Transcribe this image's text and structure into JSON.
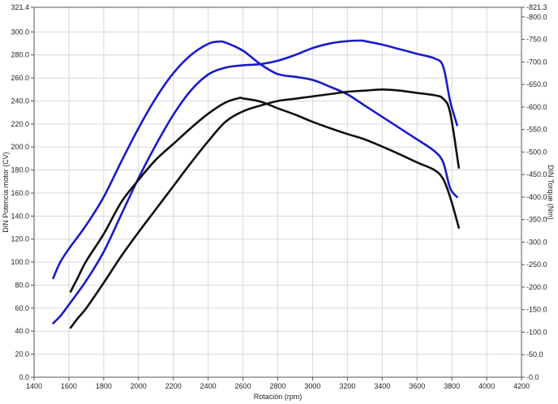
{
  "chart_data": {
    "type": "line",
    "title": "",
    "xlabel": "Rotación (rpm)",
    "ylabel_left": "DIN Potencia motor (CV)",
    "ylabel_right": "DIN Torque (Nm)",
    "xlim": [
      1400,
      4200
    ],
    "ylim_left": [
      0,
      321.4
    ],
    "ylim_right": [
      0,
      821.3
    ],
    "x_ticks": [
      "1400",
      "1600",
      "1800",
      "2000",
      "2200",
      "2400",
      "2600",
      "2800",
      "3000",
      "3200",
      "3400",
      "3600",
      "3800",
      "4000",
      "4200"
    ],
    "y_left_ticks": [
      "0.0",
      "20.0",
      "40.0",
      "60.0",
      "80.0",
      "100.0",
      "120.0",
      "140.0",
      "160.0",
      "180.0",
      "200.0",
      "220.0",
      "240.0",
      "260.0",
      "280.0",
      "300.0",
      "321.4"
    ],
    "y_right_ticks": [
      "0.0",
      "50.0",
      "100.0",
      "150.0",
      "200.0",
      "250.0",
      "300.0",
      "350.0",
      "400.0",
      "450.0",
      "500.0",
      "550.0",
      "600.0",
      "650.0",
      "700.0",
      "750.0",
      "800.0",
      "821.3"
    ],
    "grid": true,
    "colors": {
      "blue": "#1a1acc",
      "black": "#111111"
    },
    "series": [
      {
        "color": "blue",
        "axis": "right",
        "x": [
          1510,
          1550,
          1600,
          1700,
          1800,
          1900,
          2000,
          2100,
          2200,
          2300,
          2400,
          2460,
          2500,
          2600,
          2700,
          2800,
          2900,
          3000,
          3100,
          3200,
          3300,
          3400,
          3500,
          3600,
          3700,
          3750,
          3790,
          3830
        ],
        "y": [
          220,
          255,
          285,
          338,
          400,
          478,
          553,
          620,
          675,
          715,
          740,
          745,
          743,
          725,
          695,
          673,
          667,
          660,
          645,
          628,
          603,
          578,
          553,
          528,
          502,
          477,
          420,
          400
        ]
      },
      {
        "color": "blue",
        "axis": "left",
        "x": [
          1510,
          1550,
          1600,
          1700,
          1800,
          1900,
          2000,
          2100,
          2200,
          2300,
          2400,
          2500,
          2600,
          2700,
          2800,
          2900,
          3000,
          3100,
          3200,
          3280,
          3300,
          3400,
          3500,
          3600,
          3700,
          3750,
          3790,
          3830
        ],
        "y": [
          47,
          53,
          63,
          84,
          109,
          141,
          173,
          202,
          228,
          249,
          263,
          269,
          271,
          272,
          275,
          280,
          286,
          290,
          292,
          292.5,
          292,
          289,
          285,
          281,
          277,
          270,
          240,
          219
        ]
      },
      {
        "color": "black",
        "axis": "right",
        "x": [
          1610,
          1650,
          1700,
          1800,
          1900,
          2000,
          2100,
          2200,
          2300,
          2400,
          2500,
          2580,
          2600,
          2700,
          2800,
          2900,
          3000,
          3100,
          3200,
          3300,
          3400,
          3500,
          3600,
          3700,
          3750,
          3790,
          3840
        ],
        "y": [
          190,
          220,
          258,
          318,
          388,
          438,
          483,
          518,
          553,
          585,
          610,
          620,
          619,
          612,
          597,
          583,
          567,
          553,
          540,
          528,
          512,
          495,
          477,
          460,
          440,
          400,
          332
        ]
      },
      {
        "color": "black",
        "axis": "left",
        "x": [
          1610,
          1650,
          1700,
          1800,
          1900,
          2000,
          2100,
          2200,
          2300,
          2400,
          2500,
          2600,
          2700,
          2800,
          2900,
          3000,
          3100,
          3200,
          3300,
          3400,
          3500,
          3600,
          3700,
          3750,
          3790,
          3840
        ],
        "y": [
          43,
          51,
          60,
          82,
          105,
          126,
          146,
          166,
          186,
          205,
          222,
          231,
          236,
          240,
          242,
          244,
          246,
          248,
          249,
          250,
          249,
          247,
          245,
          242,
          230,
          182
        ]
      }
    ]
  }
}
